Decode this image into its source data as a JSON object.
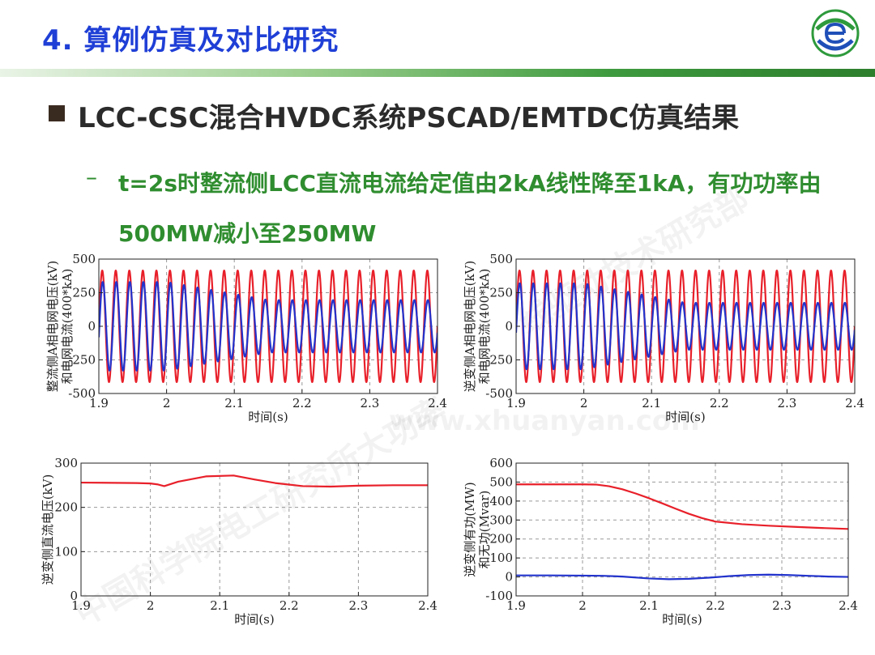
{
  "slide": {
    "title": "4. 算例仿真及对比研究",
    "heading": "LCC-CSC混合HVDC系统PSCAD/EMTDC仿真结果",
    "dash": "–",
    "sub_text": "t=2s时整流侧LCC直流电流给定值由2kA线性降至1kA，有功功率由500MW减小至250MW",
    "watermark_1": "中国科学院电工研究所大功率",
    "watermark_2": "线驱动技术研究部",
    "watermark_3": "www.xhuanyan.com",
    "logo_icon": "e-globe-logo-icon"
  },
  "chart_data": [
    {
      "id": "c1",
      "type": "line",
      "ylabel_lines": [
        "整流侧A相电网电压(kV)",
        "和电网电流(400*kA)"
      ],
      "xlabel": "时间(s)",
      "xlim": [
        1.9,
        2.4
      ],
      "ylim": [
        -500,
        500
      ],
      "xticks": [
        1.9,
        2,
        2.1,
        2.2,
        2.3,
        2.4
      ],
      "xtick_labels": [
        "1.9",
        "2",
        "2.1",
        "2.2",
        "2.3",
        "2.4"
      ],
      "yticks": [
        500,
        250,
        0,
        -250,
        -500
      ],
      "ytick_labels": [
        "500",
        "250",
        "0",
        "-250",
        "-500"
      ],
      "grid": true,
      "series": [
        {
          "color": "#e8202a",
          "kind": "sine",
          "freq_hz": 50,
          "amp_before": 415,
          "amp_after": 415,
          "phase": 0
        },
        {
          "color": "#2233cc",
          "kind": "sine",
          "freq_hz": 50,
          "amp_before": 330,
          "amp_after": 195,
          "phase": -0.25
        }
      ]
    },
    {
      "id": "c2",
      "type": "line",
      "ylabel_lines": [
        "逆变侧A相电网电压(kV)",
        "和电网电流(400*kA)"
      ],
      "xlabel": "时间(s)",
      "xlim": [
        1.9,
        2.4
      ],
      "ylim": [
        -500,
        500
      ],
      "xticks": [
        1.9,
        2,
        2.1,
        2.2,
        2.3,
        2.4
      ],
      "xtick_labels": [
        "1.9",
        "2",
        "2.1",
        "2.2",
        "2.3",
        "2.4"
      ],
      "yticks": [
        500,
        250,
        0,
        -250,
        -500
      ],
      "ytick_labels": [
        "500",
        "250",
        "0",
        "-250",
        "-500"
      ],
      "grid": true,
      "series": [
        {
          "color": "#e8202a",
          "kind": "sine",
          "freq_hz": 50,
          "amp_before": 415,
          "amp_after": 415,
          "phase": 0
        },
        {
          "color": "#2233cc",
          "kind": "sine",
          "freq_hz": 50,
          "amp_before": 320,
          "amp_after": 175,
          "phase": -0.15
        }
      ]
    },
    {
      "id": "c3",
      "type": "line",
      "ylabel_lines": [
        "逆变侧直流电压(kV)"
      ],
      "xlabel": "时间(s)",
      "xlim": [
        1.9,
        2.4
      ],
      "ylim": [
        0,
        300
      ],
      "xticks": [
        1.9,
        2,
        2.1,
        2.2,
        2.3,
        2.4
      ],
      "xtick_labels": [
        "1.9",
        "2",
        "2.1",
        "2.2",
        "2.3",
        "2.4"
      ],
      "yticks": [
        300,
        200,
        100,
        0
      ],
      "ytick_labels": [
        "300",
        "200",
        "100",
        "0"
      ],
      "grid": true,
      "series": [
        {
          "color": "#e8202a",
          "kind": "points",
          "x": [
            1.9,
            1.98,
            2.0,
            2.01,
            2.02,
            2.04,
            2.08,
            2.12,
            2.15,
            2.18,
            2.22,
            2.26,
            2.3,
            2.35,
            2.4
          ],
          "y": [
            256,
            255,
            254,
            252,
            248,
            258,
            270,
            272,
            263,
            255,
            248,
            247,
            249,
            250,
            250
          ]
        }
      ]
    },
    {
      "id": "c4",
      "type": "line",
      "ylabel_lines": [
        "逆变侧有功(MW)",
        "和无功(Mvar)"
      ],
      "xlabel": "时间(s)",
      "xlim": [
        1.9,
        2.4
      ],
      "ylim": [
        -100,
        600
      ],
      "xticks": [
        1.9,
        2,
        2.1,
        2.2,
        2.3,
        2.4
      ],
      "xtick_labels": [
        "1.9",
        "2",
        "2.1",
        "2.2",
        "2.3",
        "2.4"
      ],
      "yticks": [
        600,
        500,
        400,
        300,
        200,
        100,
        0,
        -100
      ],
      "ytick_labels": [
        "600",
        "500",
        "400",
        "300",
        "200",
        "100",
        "0",
        "-100"
      ],
      "grid": true,
      "series": [
        {
          "color": "#e8202a",
          "kind": "points",
          "x": [
            1.9,
            1.95,
            2.0,
            2.02,
            2.04,
            2.06,
            2.08,
            2.1,
            2.12,
            2.14,
            2.16,
            2.18,
            2.2,
            2.24,
            2.28,
            2.32,
            2.36,
            2.4
          ],
          "y": [
            488,
            488,
            488,
            487,
            478,
            462,
            440,
            415,
            388,
            360,
            333,
            310,
            292,
            278,
            270,
            264,
            258,
            253
          ]
        },
        {
          "color": "#2233cc",
          "kind": "points",
          "x": [
            1.9,
            1.95,
            2.0,
            2.03,
            2.06,
            2.1,
            2.13,
            2.16,
            2.19,
            2.22,
            2.25,
            2.28,
            2.31,
            2.34,
            2.37,
            2.4
          ],
          "y": [
            8,
            8,
            7,
            6,
            2,
            -8,
            -12,
            -10,
            -4,
            4,
            10,
            12,
            10,
            6,
            2,
            0
          ]
        }
      ]
    }
  ]
}
